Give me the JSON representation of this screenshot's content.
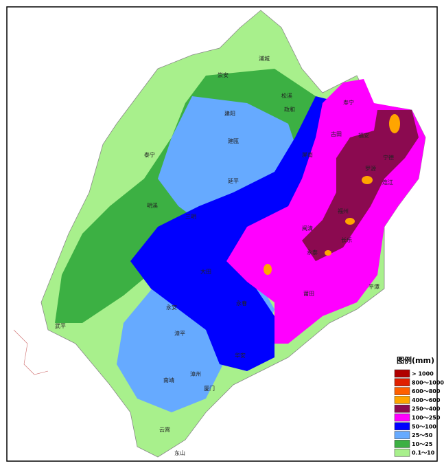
{
  "map": {
    "legend": {
      "title": "图例(mm)",
      "items": [
        {
          "label": "> 1000",
          "color": "#b00000"
        },
        {
          "label": "800～1000",
          "color": "#e02000"
        },
        {
          "label": "600～800",
          "color": "#ff6000"
        },
        {
          "label": "400～600",
          "color": "#ffa500"
        },
        {
          "label": "250～400",
          "color": "#8b0a50"
        },
        {
          "label": "100～250",
          "color": "#ff00ff"
        },
        {
          "label": "50～100",
          "color": "#0000ff"
        },
        {
          "label": "25～50",
          "color": "#66aaff"
        },
        {
          "label": "10～25",
          "color": "#3cb043"
        },
        {
          "label": "0.1～10",
          "color": "#a8f08c"
        }
      ]
    },
    "places": [
      "浦城",
      "崇安",
      "松溪",
      "政和",
      "建阳",
      "寿宁",
      "建瓯",
      "福安",
      "屏南",
      "宁德",
      "泰宁",
      "延平",
      "古田",
      "罗源",
      "明溪",
      "三明",
      "闽清",
      "连江",
      "福州",
      "永安",
      "长乐",
      "永泰",
      "大田",
      "平潭",
      "莆田",
      "永春",
      "漳平",
      "华安",
      "武平",
      "南靖",
      "漳州",
      "厦门",
      "云霄",
      "东山"
    ]
  }
}
